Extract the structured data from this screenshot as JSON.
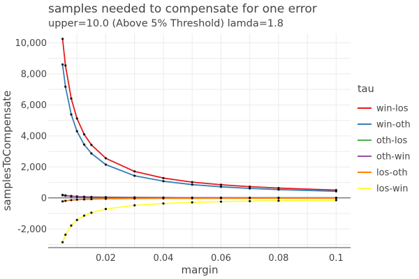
{
  "chart_data": {
    "type": "line",
    "title": "samples needed to compensate for one error",
    "subtitle": "upper=10.0 (Above 5% Threshold) lamda=1.8",
    "xlabel": "margin",
    "ylabel": "samplesToCompensate",
    "xlim": [
      0,
      0.105
    ],
    "ylim": [
      -3200,
      10600
    ],
    "x_ticks": [
      0.02,
      0.04,
      0.06,
      0.08,
      0.1
    ],
    "x_tick_labels": [
      "0.02",
      "0.04",
      "0.06",
      "0.08",
      "0.1"
    ],
    "y_ticks": [
      -2000,
      0,
      2000,
      4000,
      6000,
      8000,
      10000
    ],
    "y_tick_labels": [
      "-2,000",
      "0",
      "2,000",
      "4,000",
      "6,000",
      "8,000",
      "10,000"
    ],
    "grid": true,
    "zero_line": true,
    "legend_title": "tau",
    "legend_position": "right",
    "x": [
      0.005,
      0.006,
      0.008,
      0.01,
      0.0125,
      0.015,
      0.02,
      0.03,
      0.04,
      0.05,
      0.06,
      0.07,
      0.08,
      0.1
    ],
    "series": [
      {
        "name": "win-los",
        "color": "#e41a1c",
        "values": [
          10250,
          8540,
          6410,
          5120,
          4100,
          3420,
          2560,
          1710,
          1280,
          1020,
          850,
          730,
          640,
          510
        ]
      },
      {
        "name": "win-oth",
        "color": "#377eb8",
        "values": [
          8600,
          7170,
          5380,
          4300,
          3440,
          2870,
          2150,
          1430,
          1080,
          860,
          720,
          615,
          540,
          430
        ]
      },
      {
        "name": "oth-los",
        "color": "#4daf4a",
        "values": [
          200,
          165,
          125,
          100,
          80,
          65,
          50,
          35,
          25,
          20,
          17,
          14,
          12,
          10
        ]
      },
      {
        "name": "oth-win",
        "color": "#984ea3",
        "values": [
          170,
          140,
          105,
          85,
          68,
          57,
          43,
          28,
          21,
          17,
          14,
          12,
          10,
          8
        ]
      },
      {
        "name": "los-oth",
        "color": "#ff7f00",
        "values": [
          -220,
          -185,
          -140,
          -110,
          -90,
          -75,
          -55,
          -37,
          -28,
          -22,
          -18,
          -16,
          -14,
          -11
        ]
      },
      {
        "name": "los-win",
        "color": "#ffff33",
        "values": [
          -2850,
          -2370,
          -1780,
          -1420,
          -1140,
          -950,
          -710,
          -475,
          -355,
          -285,
          -237,
          -203,
          -178,
          -142
        ]
      }
    ]
  }
}
